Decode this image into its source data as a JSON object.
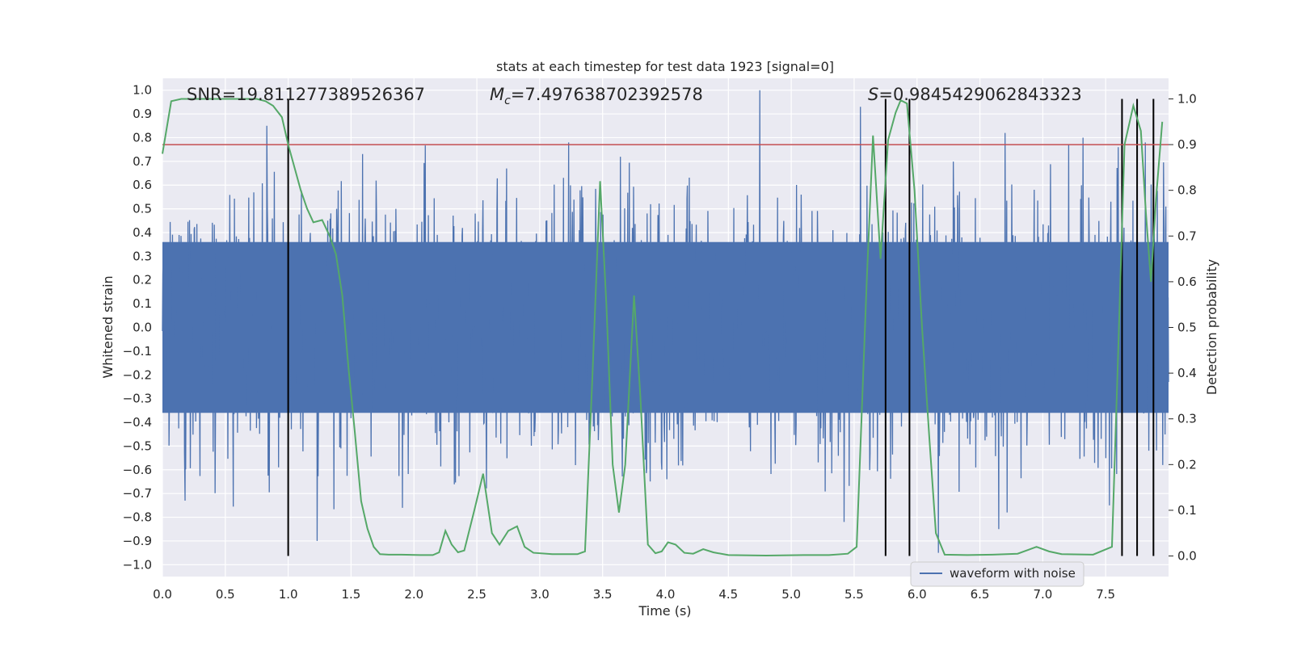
{
  "chart_data": {
    "type": "line",
    "title": "stats at each timestep for test data 1923 [signal=0]",
    "xlabel": "Time (s)",
    "ylabel": "Whitened strain",
    "y2label": "Detection probability",
    "xlim": [
      0.0,
      8.0
    ],
    "ylim": [
      -1.05,
      1.05
    ],
    "y2lim": [
      -0.045,
      1.045
    ],
    "x_ticks": [
      "0.0",
      "0.5",
      "1.0",
      "1.5",
      "2.0",
      "2.5",
      "3.0",
      "3.5",
      "4.0",
      "4.5",
      "5.0",
      "5.5",
      "6.0",
      "6.5",
      "7.0",
      "7.5"
    ],
    "y_ticks": [
      "1.0",
      "0.9",
      "0.8",
      "0.7",
      "0.6",
      "0.5",
      "0.4",
      "0.3",
      "0.2",
      "0.1",
      "0.0",
      "−0.1",
      "−0.2",
      "−0.3",
      "−0.4",
      "−0.5",
      "−0.6",
      "−0.7",
      "−0.8",
      "−0.9",
      "−1.0"
    ],
    "y2_ticks": [
      "1.0",
      "0.9",
      "0.8",
      "0.7",
      "0.6",
      "0.5",
      "0.4",
      "0.3",
      "0.2",
      "0.1",
      "0.0"
    ],
    "annotations": {
      "snr": "SNR=19.811277389526367",
      "mc_symbol": "M",
      "mc_sub": "c",
      "mc_value": "=7.497638702392578",
      "s_symbol": "S",
      "s_value": "=0.9845429062843323"
    },
    "threshold_line": {
      "y2": 0.9,
      "color": "#c44e52"
    },
    "detection_markers_x": [
      1.0,
      5.75,
      5.94,
      7.63,
      7.75,
      7.88
    ],
    "legend": {
      "label": "waveform with noise",
      "placement": "lower-right"
    },
    "series": [
      {
        "name": "waveform with noise",
        "axis": "left",
        "color": "#4c72b0",
        "description": "dense whitened strain noise, core band roughly -0.4 to 0.4 with spikes",
        "core_amplitude": 0.42,
        "spikes": [
          {
            "x": 0.83,
            "y": 0.85
          },
          {
            "x": 4.75,
            "y": 1.0
          },
          {
            "x": 5.55,
            "y": 0.93
          },
          {
            "x": 3.23,
            "y": 0.78
          },
          {
            "x": 1.23,
            "y": -0.9
          },
          {
            "x": 6.17,
            "y": -0.95
          },
          {
            "x": 5.42,
            "y": -0.82
          },
          {
            "x": 0.18,
            "y": -0.73
          },
          {
            "x": 6.65,
            "y": -0.85
          },
          {
            "x": 7.53,
            "y": -0.75
          },
          {
            "x": 7.6,
            "y": 0.76
          },
          {
            "x": 6.7,
            "y": 0.82
          },
          {
            "x": 7.32,
            "y": 0.8
          }
        ]
      },
      {
        "name": "detection probability",
        "axis": "right",
        "color": "#55a868",
        "points": [
          [
            0.0,
            0.88
          ],
          [
            0.07,
            0.995
          ],
          [
            0.15,
            1.0
          ],
          [
            0.5,
            1.0
          ],
          [
            0.75,
            1.0
          ],
          [
            0.82,
            0.995
          ],
          [
            0.88,
            0.985
          ],
          [
            0.95,
            0.96
          ],
          [
            1.0,
            0.9
          ],
          [
            1.05,
            0.85
          ],
          [
            1.1,
            0.8
          ],
          [
            1.15,
            0.76
          ],
          [
            1.2,
            0.73
          ],
          [
            1.27,
            0.735
          ],
          [
            1.33,
            0.7
          ],
          [
            1.38,
            0.66
          ],
          [
            1.43,
            0.57
          ],
          [
            1.48,
            0.41
          ],
          [
            1.53,
            0.27
          ],
          [
            1.58,
            0.12
          ],
          [
            1.63,
            0.06
          ],
          [
            1.68,
            0.02
          ],
          [
            1.73,
            0.004
          ],
          [
            1.8,
            0.003
          ],
          [
            1.9,
            0.003
          ],
          [
            2.05,
            0.002
          ],
          [
            2.15,
            0.002
          ],
          [
            2.2,
            0.008
          ],
          [
            2.25,
            0.055
          ],
          [
            2.3,
            0.025
          ],
          [
            2.35,
            0.008
          ],
          [
            2.4,
            0.012
          ],
          [
            2.48,
            0.1
          ],
          [
            2.55,
            0.18
          ],
          [
            2.62,
            0.05
          ],
          [
            2.68,
            0.025
          ],
          [
            2.75,
            0.055
          ],
          [
            2.82,
            0.065
          ],
          [
            2.88,
            0.02
          ],
          [
            2.95,
            0.007
          ],
          [
            3.1,
            0.004
          ],
          [
            3.3,
            0.004
          ],
          [
            3.36,
            0.01
          ],
          [
            3.42,
            0.4
          ],
          [
            3.48,
            0.82
          ],
          [
            3.53,
            0.55
          ],
          [
            3.58,
            0.2
          ],
          [
            3.63,
            0.095
          ],
          [
            3.68,
            0.2
          ],
          [
            3.75,
            0.57
          ],
          [
            3.8,
            0.35
          ],
          [
            3.86,
            0.025
          ],
          [
            3.92,
            0.006
          ],
          [
            3.97,
            0.01
          ],
          [
            4.02,
            0.03
          ],
          [
            4.08,
            0.025
          ],
          [
            4.15,
            0.007
          ],
          [
            4.22,
            0.005
          ],
          [
            4.3,
            0.015
          ],
          [
            4.38,
            0.008
          ],
          [
            4.5,
            0.002
          ],
          [
            4.8,
            0.001
          ],
          [
            5.1,
            0.002
          ],
          [
            5.3,
            0.002
          ],
          [
            5.45,
            0.005
          ],
          [
            5.52,
            0.02
          ],
          [
            5.6,
            0.6
          ],
          [
            5.65,
            0.92
          ],
          [
            5.71,
            0.65
          ],
          [
            5.77,
            0.91
          ],
          [
            5.83,
            0.97
          ],
          [
            5.87,
            0.997
          ],
          [
            5.92,
            0.99
          ],
          [
            5.98,
            0.8
          ],
          [
            6.04,
            0.5
          ],
          [
            6.1,
            0.25
          ],
          [
            6.15,
            0.05
          ],
          [
            6.22,
            0.003
          ],
          [
            6.4,
            0.002
          ],
          [
            6.6,
            0.003
          ],
          [
            6.8,
            0.005
          ],
          [
            6.95,
            0.02
          ],
          [
            7.05,
            0.01
          ],
          [
            7.15,
            0.004
          ],
          [
            7.4,
            0.003
          ],
          [
            7.55,
            0.02
          ],
          [
            7.6,
            0.45
          ],
          [
            7.65,
            0.9
          ],
          [
            7.72,
            0.985
          ],
          [
            7.78,
            0.93
          ],
          [
            7.82,
            0.75
          ],
          [
            7.86,
            0.6
          ],
          [
            7.9,
            0.78
          ],
          [
            7.95,
            0.95
          ]
        ]
      }
    ]
  }
}
